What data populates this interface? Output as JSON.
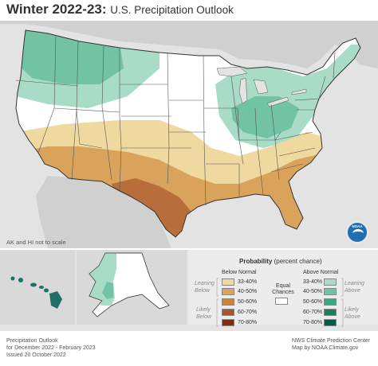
{
  "title": {
    "main": "Winter 2022-23:",
    "sub": "U.S. Precipitation Outlook"
  },
  "map_note": "AK and HI not to scale",
  "legend": {
    "title": "Probability",
    "title_suffix": "(percent chance)",
    "below_header": "Below Normal",
    "above_header": "Above Normal",
    "leaning_below": "Leaning Below",
    "likely_below": "Likely Below",
    "leaning_above": "Leaning Above",
    "likely_above": "Likely Above",
    "equal_chances": "Equal Chances",
    "below": [
      {
        "label": "33-40%",
        "color": "#f0d9a0"
      },
      {
        "label": "40-50%",
        "color": "#d9a35c"
      },
      {
        "label": "50-60%",
        "color": "#c8843f"
      },
      {
        "label": "60-70%",
        "color": "#a9552c"
      },
      {
        "label": "70-80%",
        "color": "#7a2f14"
      }
    ],
    "above": [
      {
        "label": "33-40%",
        "color": "#a8dcc6"
      },
      {
        "label": "40-50%",
        "color": "#72c3a4"
      },
      {
        "label": "50-60%",
        "color": "#3da583"
      },
      {
        "label": "60-70%",
        "color": "#1c7d63"
      },
      {
        "label": "70-80%",
        "color": "#0b5646"
      }
    ],
    "equal_color": "#ffffff"
  },
  "footer_left": {
    "line1": "Precipitation Outlook",
    "line2": "for December 2022 - February 2023",
    "line3": "Issued 20 October 2022"
  },
  "footer_right": {
    "line1": "NWS Climate Prediction Center",
    "line2": "Map by NOAA Climate.gov"
  },
  "logo": "NOAA",
  "colors": {
    "ocean": "#e3e3e3",
    "land_outside": "#c9c9c9",
    "state_border": "#333333",
    "hawaii": "#1f7068"
  }
}
